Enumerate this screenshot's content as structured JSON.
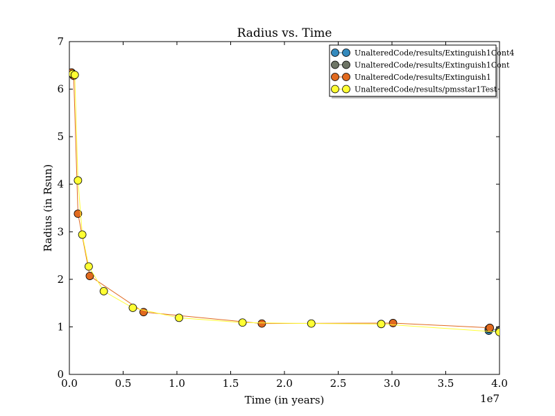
{
  "chart_data": {
    "type": "line",
    "title": "Radius vs. Time",
    "xlabel": "Time (in years)",
    "ylabel": "Radius (in Rsun)",
    "x_scale_label": "1e7",
    "xlim": [
      0,
      40000000
    ],
    "ylim": [
      0,
      7
    ],
    "x_ticks": [
      "0.0",
      "0.5",
      "1.0",
      "1.5",
      "2.0",
      "2.5",
      "3.0",
      "3.5",
      "4.0"
    ],
    "y_ticks": [
      "0",
      "1",
      "2",
      "3",
      "4",
      "5",
      "6",
      "7"
    ],
    "legend_position": "top-right",
    "grid": false,
    "series": [
      {
        "name": "UnalteredCode/results/Extinguish1Cont4",
        "color": "#348ABD",
        "x": [
          39000000,
          40000000
        ],
        "y": [
          0.92,
          0.9
        ]
      },
      {
        "name": "UnalteredCode/results/Extinguish1Cont",
        "color": "#6E7566",
        "x": [
          39000000,
          40000000
        ],
        "y": [
          0.96,
          0.93
        ]
      },
      {
        "name": "UnalteredCode/results/Extinguish1",
        "color": "#E16A1F",
        "x": [
          200000,
          400000,
          800000,
          1900000,
          6900000,
          17900000,
          30100000,
          39100000
        ],
        "y": [
          6.35,
          6.28,
          3.38,
          2.07,
          1.31,
          1.07,
          1.08,
          0.98
        ]
      },
      {
        "name": "UnalteredCode/results/pmsstar1Test",
        "color": "#FFFF33",
        "x": [
          300000,
          500000,
          800000,
          1200000,
          1800000,
          3200000,
          5900000,
          10200000,
          16100000,
          22500000,
          29000000,
          40000000
        ],
        "y": [
          6.32,
          6.3,
          4.08,
          2.94,
          2.27,
          1.75,
          1.4,
          1.19,
          1.09,
          1.07,
          1.06,
          0.89
        ]
      }
    ]
  }
}
